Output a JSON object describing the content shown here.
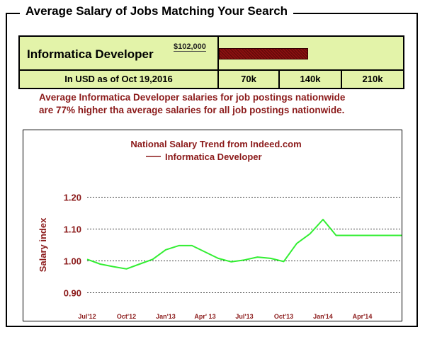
{
  "header": {
    "title": "Average Salary of Jobs Matching Your Search"
  },
  "salary_summary": {
    "job_title": "Informatica Developer",
    "salary_label": "$102,000",
    "salary_value": 102000,
    "scale_max": 210000,
    "currency_note": "In USD as of Oct 19,2016",
    "scale_ticks": [
      "70k",
      "140k",
      "210k"
    ],
    "bar_color": "#8a1010",
    "box_color": "#e3f3a9"
  },
  "description": {
    "line1": "Average Informatica Developer salaries for job postings nationwide",
    "line2": "are 77%  higher tha average salaries for all job postings nationwide.",
    "color": "#8b1a1a"
  },
  "chart_data": {
    "type": "line",
    "title": "National Salary Trend from Indeed.com",
    "legend": "Informatica Developer",
    "legend_placement": "top",
    "ylabel": "Salary index",
    "xlabel": "",
    "ylim": [
      0.85,
      1.25
    ],
    "yticks": [
      0.9,
      1.0,
      1.1,
      1.2
    ],
    "ytick_labels": [
      "0.90",
      "1.00",
      "1.10",
      "1.20"
    ],
    "xtick_labels": [
      "Jul'12",
      "Oct'12",
      "Jan'13",
      "Apr' 13",
      "Jul'13",
      "Oct'13",
      "Jan'14",
      "Apr'14"
    ],
    "xtick_positions": [
      0,
      3,
      6,
      9,
      12,
      15,
      18,
      21
    ],
    "xlim": [
      0,
      24
    ],
    "grid": true,
    "line_color": "#33ee33",
    "text_color": "#8b1a1a",
    "series": [
      {
        "name": "Informatica Developer",
        "x": [
          0,
          1,
          2,
          3,
          4,
          5,
          6,
          7,
          8,
          9,
          10,
          11,
          12,
          13,
          14,
          15,
          16,
          17,
          18,
          19,
          20,
          21,
          22,
          23,
          24
        ],
        "values": [
          1.005,
          0.99,
          0.982,
          0.975,
          0.99,
          1.005,
          1.035,
          1.048,
          1.048,
          1.028,
          1.008,
          0.997,
          1.003,
          1.012,
          1.008,
          0.998,
          1.055,
          1.085,
          1.13,
          1.08,
          1.08,
          1.08,
          1.08,
          1.08,
          1.08
        ]
      }
    ]
  }
}
